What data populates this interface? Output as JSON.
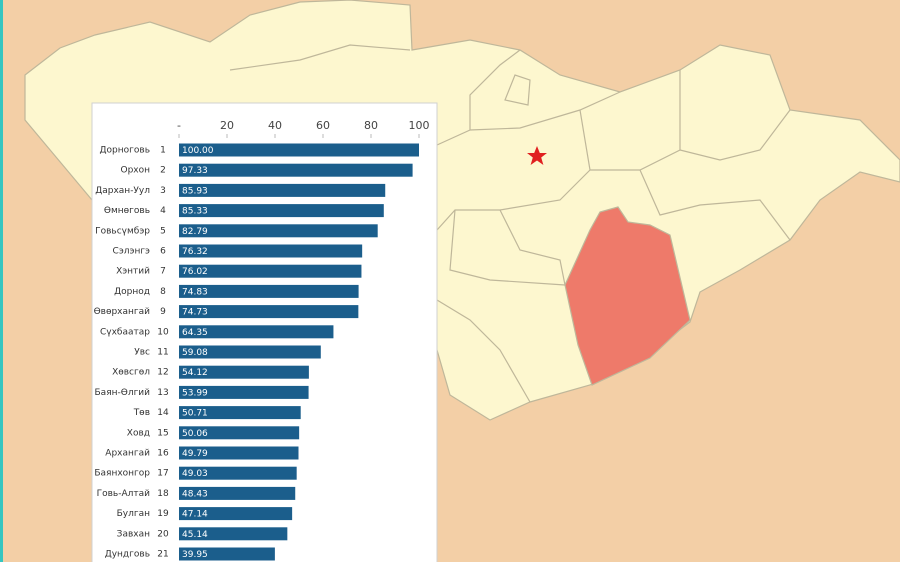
{
  "chart_data": {
    "type": "bar",
    "categories": [
      "Дорноговь",
      "Орхон",
      "Дархан-Уул",
      "Өмнөговь",
      "Говьсүмбэр",
      "Сэлэнгэ",
      "Хэнтий",
      "Дорнод",
      "Өвөрхангай",
      "Сүхбаатар",
      "Увс",
      "Хөвсгөл",
      "Баян-Өлгий",
      "Төв",
      "Ховд",
      "Архангай",
      "Баянхонгор",
      "Говь-Алтай",
      "Булган",
      "Завхан",
      "Дундговь"
    ],
    "ranks": [
      1,
      2,
      3,
      4,
      5,
      6,
      7,
      8,
      9,
      10,
      11,
      12,
      13,
      14,
      15,
      16,
      17,
      18,
      19,
      20,
      21
    ],
    "values": [
      100,
      97.33,
      85.93,
      85.33,
      82.79,
      76.32,
      76.02,
      74.83,
      74.73,
      64.35,
      59.08,
      54.12,
      53.99,
      50.71,
      50.06,
      49.79,
      49.03,
      48.43,
      47.14,
      45.14,
      39.95
    ],
    "value_labels": [
      "100.00",
      "97.33",
      "85.93",
      "85.33",
      "82.79",
      "76.32",
      "76.02",
      "74.83",
      "74.73",
      "64.35",
      "59.08",
      "54.12",
      "53.99",
      "50.71",
      "50.06",
      "49.79",
      "49.03",
      "48.43",
      "47.14",
      "45.14",
      "39.95"
    ],
    "color": "#1b5e8c",
    "xlim": [
      0,
      100
    ],
    "xticks": [
      {
        "value": 0,
        "label": "-"
      },
      20,
      40,
      60,
      80,
      100
    ]
  }
}
